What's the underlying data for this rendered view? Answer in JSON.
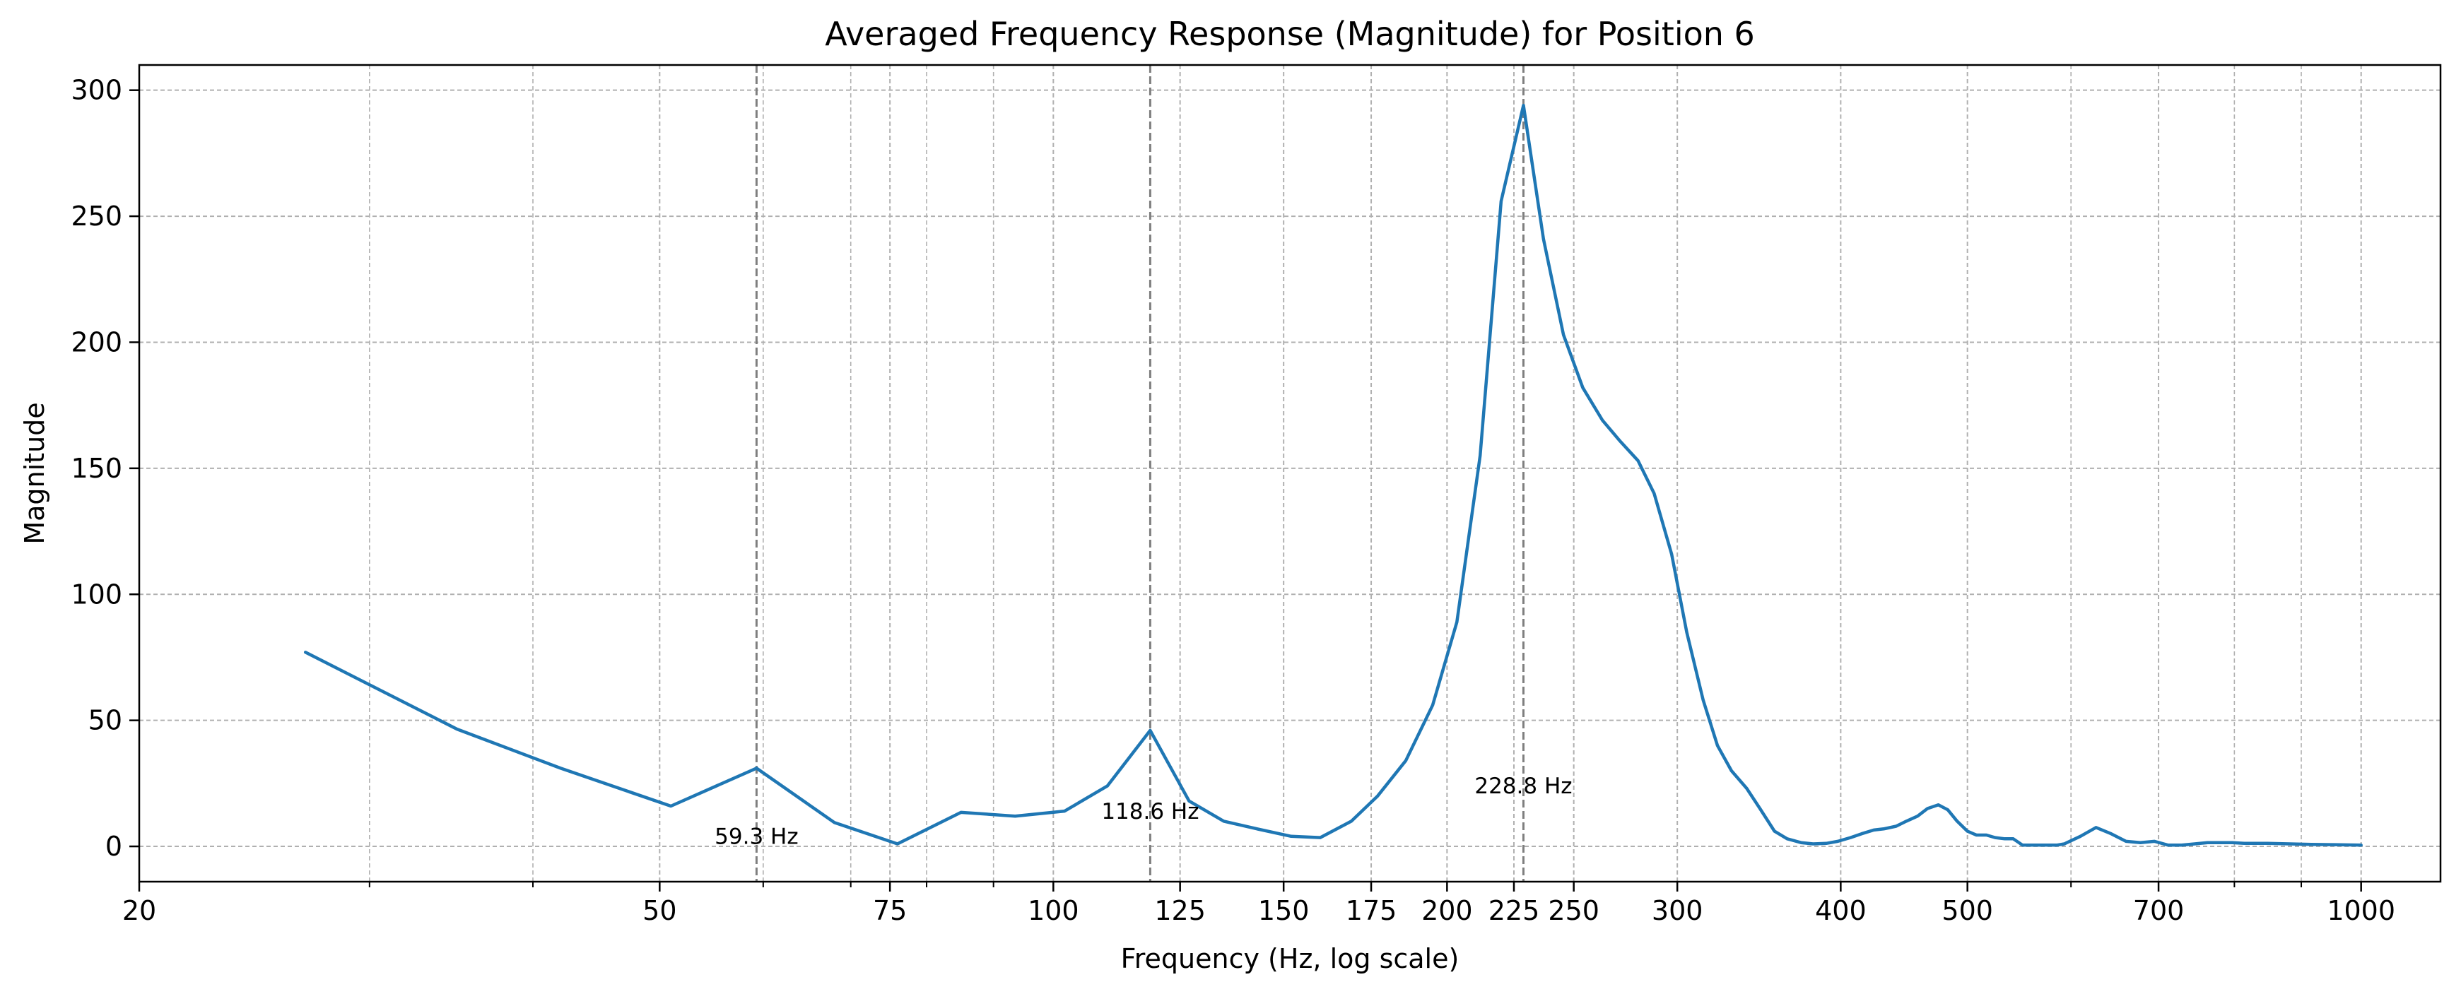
{
  "chart_data": {
    "type": "line",
    "title": "Averaged Frequency Response (Magnitude) for Position 6",
    "xlabel": "Frequency (Hz, log scale)",
    "ylabel": "Magnitude",
    "x_scale": "log",
    "xlim": [
      20,
      1150
    ],
    "ylim": [
      -14,
      310
    ],
    "x_ticks": [
      20,
      50,
      75,
      100,
      125,
      150,
      175,
      200,
      225,
      250,
      300,
      400,
      500,
      700,
      1000
    ],
    "x_tick_labels": [
      "20",
      "50",
      "75",
      "100",
      "125",
      "150",
      "175",
      "200",
      "225",
      "250",
      "300",
      "400",
      "500",
      "700",
      "1000"
    ],
    "x_minor_ticks": [
      30,
      40,
      60,
      70,
      80,
      90,
      600,
      800,
      900
    ],
    "y_ticks": [
      0,
      50,
      100,
      150,
      200,
      250,
      300
    ],
    "y_tick_labels": [
      "0",
      "50",
      "100",
      "150",
      "200",
      "250",
      "300"
    ],
    "grid": true,
    "series": [
      {
        "color": "#1f77b4",
        "x": [
          26.8,
          35.0,
          42.0,
          51.0,
          59.3,
          68.0,
          76.0,
          85.0,
          93.5,
          102.0,
          110.0,
          118.6,
          127.0,
          135.0,
          143.0,
          152.0,
          160.0,
          169.0,
          177.0,
          186.0,
          195.0,
          203.5,
          212.0,
          220.0,
          228.8,
          237.0,
          245.5,
          254.0,
          263.0,
          271.0,
          280.0,
          288.0,
          297.0,
          305.0,
          314.0,
          322.0,
          330.0,
          339.0,
          347.0,
          356.0,
          364.0,
          373.0,
          381.0,
          390.0,
          398.0,
          407.0,
          415.0,
          424.0,
          432.0,
          441.0,
          449.0,
          458.0,
          466.0,
          475.0,
          483.0,
          491.0,
          500.0,
          508.0,
          517.0,
          525.0,
          534.0,
          542.0,
          551.0,
          559.0,
          568.0,
          576.0,
          585.0,
          593.0,
          610.0,
          627.0,
          644.0,
          661.0,
          678.0,
          695.0,
          712.0,
          729.0,
          746.0,
          763.0,
          780.0,
          797.0,
          814.0,
          848.0,
          882.0,
          916.0,
          950.0,
          1000.0
        ],
        "y": [
          77,
          46.5,
          31,
          16,
          31,
          9.5,
          1,
          13.5,
          12,
          14,
          24,
          46,
          18,
          10,
          7,
          4,
          3.5,
          10,
          20,
          34,
          56,
          89,
          155,
          256,
          294,
          241,
          203,
          182,
          169,
          161,
          153,
          140,
          116,
          85,
          58,
          40,
          30,
          23,
          15,
          6,
          3,
          1.5,
          1,
          1.2,
          2,
          3.5,
          5,
          6.5,
          7,
          8,
          10,
          12,
          15,
          16.5,
          14.5,
          10,
          6,
          4.5,
          4.5,
          3.5,
          3,
          3,
          0.5,
          0.5,
          0.5,
          0.5,
          0.5,
          1,
          4,
          7.5,
          5,
          2,
          1.5,
          2,
          0.5,
          0.5,
          1,
          1.5,
          1.5,
          1.5,
          1.2,
          1.2,
          1.0,
          0.8,
          0.7,
          0.5
        ]
      }
    ],
    "vlines": [
      {
        "x": 59.3,
        "label": "59.3 Hz",
        "label_y": 1
      },
      {
        "x": 118.6,
        "label": "118.6 Hz",
        "label_y": 11
      },
      {
        "x": 228.8,
        "label": "228.8 Hz",
        "label_y": 21
      }
    ]
  }
}
